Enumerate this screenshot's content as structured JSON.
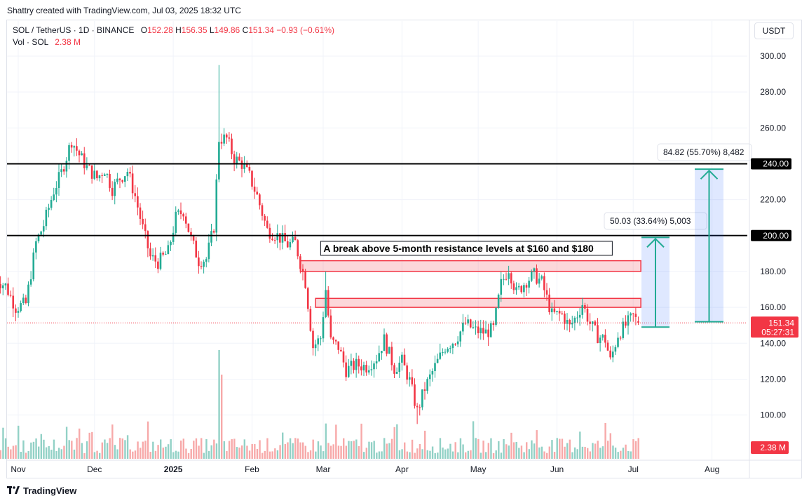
{
  "header": {
    "credit": "Shattry created with TradingView.com, Jul 03, 2025 18:32 UTC"
  },
  "legend": {
    "symbol": "SOL / TetherUS · 1D · BINANCE",
    "o_label": "O",
    "o_value": "152.28",
    "h_label": "H",
    "h_value": "156.35",
    "l_label": "L",
    "l_value": "149.86",
    "c_label": "C",
    "c_value": "151.34",
    "change": "−0.93 (−0.61%)",
    "vol_label": "Vol · SOL",
    "vol_value": "2.38 M"
  },
  "currency_button": "USDT",
  "footer": {
    "brand": "TradingView"
  },
  "colors": {
    "up": "#22ab94",
    "down": "#f23645",
    "vol_up": "#92d1c6",
    "vol_down": "#f7a9a9"
  },
  "chart_data": {
    "type": "candlestick",
    "title": "SOL / TetherUS · 1D · BINANCE",
    "y_range": [
      90,
      310
    ],
    "y_ticks": [
      "300.00",
      "280.00",
      "260.00",
      "240.00",
      "220.00",
      "200.00",
      "180.00",
      "160.00",
      "140.00",
      "120.00",
      "100.00"
    ],
    "x_labels": [
      {
        "label": "Nov",
        "date": "2024-11-01"
      },
      {
        "label": "Dec",
        "date": "2024-12-01"
      },
      {
        "label": "2025",
        "date": "2025-01-01",
        "bold": true
      },
      {
        "label": "Feb",
        "date": "2025-02-01"
      },
      {
        "label": "Mar",
        "date": "2025-03-01"
      },
      {
        "label": "Apr",
        "date": "2025-04-01"
      },
      {
        "label": "May",
        "date": "2025-05-01"
      },
      {
        "label": "Jun",
        "date": "2025-06-01"
      },
      {
        "label": "Jul",
        "date": "2025-07-01"
      },
      {
        "label": "Aug",
        "date": "2025-08-01"
      }
    ],
    "price_path": [
      [
        "2024-10-23",
        176
      ],
      [
        "2024-10-27",
        172
      ],
      [
        "2024-10-31",
        160
      ],
      [
        "2024-11-04",
        162
      ],
      [
        "2024-11-08",
        196
      ],
      [
        "2024-11-11",
        206
      ],
      [
        "2024-11-15",
        225
      ],
      [
        "2024-11-18",
        235
      ],
      [
        "2024-11-22",
        253
      ],
      [
        "2024-11-25",
        245
      ],
      [
        "2024-11-28",
        238
      ],
      [
        "2024-12-02",
        232
      ],
      [
        "2024-12-05",
        237
      ],
      [
        "2024-12-08",
        226
      ],
      [
        "2024-12-11",
        232
      ],
      [
        "2024-12-14",
        236
      ],
      [
        "2024-12-17",
        222
      ],
      [
        "2024-12-20",
        204
      ],
      [
        "2024-12-23",
        188
      ],
      [
        "2024-12-26",
        185
      ],
      [
        "2024-12-30",
        191
      ],
      [
        "2025-01-02",
        210
      ],
      [
        "2025-01-05",
        214
      ],
      [
        "2025-01-08",
        198
      ],
      [
        "2025-01-11",
        186
      ],
      [
        "2025-01-14",
        187
      ],
      [
        "2025-01-17",
        205
      ],
      [
        "2025-01-19",
        254
      ],
      [
        "2025-01-22",
        254
      ],
      [
        "2025-01-25",
        243
      ],
      [
        "2025-01-28",
        240
      ],
      [
        "2025-01-31",
        233
      ],
      [
        "2025-02-03",
        222
      ],
      [
        "2025-02-07",
        203
      ],
      [
        "2025-02-11",
        200
      ],
      [
        "2025-02-15",
        195
      ],
      [
        "2025-02-18",
        196
      ],
      [
        "2025-02-22",
        174
      ],
      [
        "2025-02-25",
        138
      ],
      [
        "2025-02-28",
        143
      ],
      [
        "2025-03-02",
        170
      ],
      [
        "2025-03-04",
        141
      ],
      [
        "2025-03-07",
        138
      ],
      [
        "2025-03-10",
        125
      ],
      [
        "2025-03-14",
        128
      ],
      [
        "2025-03-18",
        127
      ],
      [
        "2025-03-22",
        132
      ],
      [
        "2025-03-25",
        142
      ],
      [
        "2025-03-29",
        126
      ],
      [
        "2025-04-01",
        130
      ],
      [
        "2025-04-04",
        119
      ],
      [
        "2025-04-07",
        102
      ],
      [
        "2025-04-10",
        115
      ],
      [
        "2025-04-14",
        127
      ],
      [
        "2025-04-18",
        138
      ],
      [
        "2025-04-22",
        142
      ],
      [
        "2025-04-26",
        151
      ],
      [
        "2025-04-30",
        147
      ],
      [
        "2025-05-04",
        146
      ],
      [
        "2025-05-07",
        148
      ],
      [
        "2025-05-10",
        173
      ],
      [
        "2025-05-13",
        182
      ],
      [
        "2025-05-16",
        168
      ],
      [
        "2025-05-20",
        175
      ],
      [
        "2025-05-23",
        178
      ],
      [
        "2025-05-26",
        174
      ],
      [
        "2025-05-30",
        156
      ],
      [
        "2025-06-03",
        156
      ],
      [
        "2025-06-06",
        149
      ],
      [
        "2025-06-09",
        156
      ],
      [
        "2025-06-11",
        162
      ],
      [
        "2025-06-14",
        151
      ],
      [
        "2025-06-17",
        144
      ],
      [
        "2025-06-20",
        142
      ],
      [
        "2025-06-22",
        130
      ],
      [
        "2025-06-25",
        145
      ],
      [
        "2025-06-28",
        150
      ],
      [
        "2025-07-01",
        155
      ],
      [
        "2025-07-03",
        151.34
      ]
    ],
    "volume_spike": {
      "date": "2025-01-19",
      "approx": 40000000
    },
    "annotations": {
      "horizontal_lines": [
        200,
        240
      ],
      "zones": [
        {
          "from": 180,
          "to": 186,
          "start": "2025-02-20",
          "end": "2025-07-04"
        },
        {
          "from": 160,
          "to": 165,
          "start": "2025-02-26",
          "end": "2025-07-04"
        }
      ],
      "callout": "A break above  5-month resistance levels at $160 and $180",
      "measure_1": {
        "label": "50.03 (33.64%) 5,003",
        "from": 149,
        "to": 199
      },
      "measure_2": {
        "label": "84.82 (55.70%) 8,482",
        "from": 152,
        "to": 237
      }
    },
    "current_price": "151.34",
    "countdown": "05:27:31",
    "level_labels": [
      "240.00",
      "200.00"
    ],
    "volume_label": "2.38 M"
  }
}
